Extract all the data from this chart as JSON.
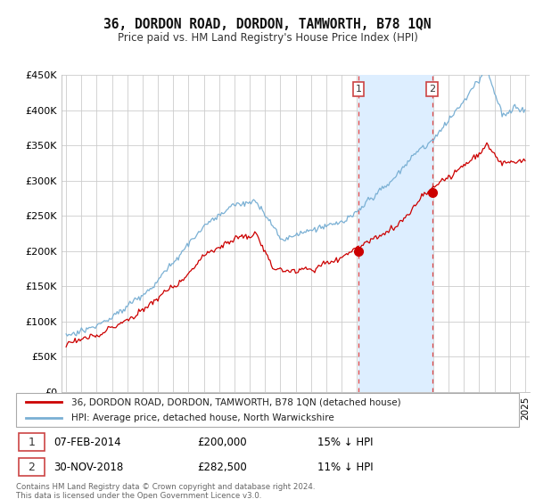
{
  "title": "36, DORDON ROAD, DORDON, TAMWORTH, B78 1QN",
  "subtitle": "Price paid vs. HM Land Registry's House Price Index (HPI)",
  "legend_line1": "36, DORDON ROAD, DORDON, TAMWORTH, B78 1QN (detached house)",
  "legend_line2": "HPI: Average price, detached house, North Warwickshire",
  "transaction1_date": "07-FEB-2014",
  "transaction1_price": "£200,000",
  "transaction1_hpi": "15% ↓ HPI",
  "transaction2_date": "30-NOV-2018",
  "transaction2_price": "£282,500",
  "transaction2_hpi": "11% ↓ HPI",
  "footer": "Contains HM Land Registry data © Crown copyright and database right 2024.\nThis data is licensed under the Open Government Licence v3.0.",
  "line_color_red": "#cc0000",
  "line_color_blue": "#7ab0d4",
  "shade_color": "#ddeeff",
  "ylim": [
    0,
    450000
  ],
  "yticks": [
    0,
    50000,
    100000,
    150000,
    200000,
    250000,
    300000,
    350000,
    400000,
    450000
  ],
  "ytick_labels": [
    "£0",
    "£50K",
    "£100K",
    "£150K",
    "£200K",
    "£250K",
    "£300K",
    "£350K",
    "£400K",
    "£450K"
  ],
  "transaction1_x": 2014.1,
  "transaction2_x": 2018.92,
  "transaction1_y": 200000,
  "transaction2_y": 282500,
  "shade_x1": 2014.1,
  "shade_x2": 2018.92,
  "xlim_left": 1994.7,
  "xlim_right": 2025.3
}
